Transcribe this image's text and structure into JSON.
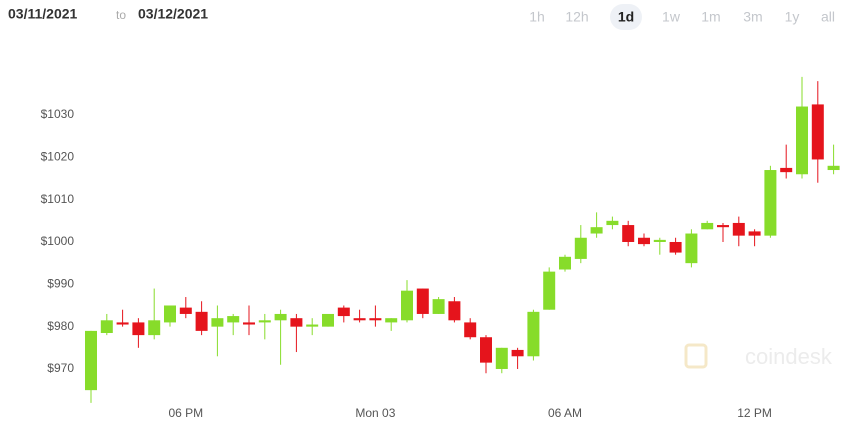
{
  "chart_data": {
    "type": "candlestick",
    "date_from": "03/11/2021",
    "date_separator": "to",
    "date_to": "03/12/2021",
    "ranges": [
      "1h",
      "12h",
      "1d",
      "1w",
      "1m",
      "3m",
      "1y",
      "all"
    ],
    "selected_range": "1d",
    "watermark": "coindesk",
    "categories": [
      null,
      null,
      null,
      null,
      null,
      null,
      "06 PM",
      null,
      null,
      null,
      null,
      null,
      null,
      null,
      null,
      null,
      null,
      null,
      "Mon 03",
      null,
      null,
      null,
      null,
      null,
      null,
      null,
      null,
      null,
      null,
      null,
      "06 AM",
      null,
      null,
      null,
      null,
      null,
      null,
      null,
      null,
      null,
      null,
      null,
      "12 PM",
      null,
      null,
      null,
      null,
      null
    ],
    "open": [
      965,
      978.5,
      981,
      981,
      978,
      981,
      984.5,
      983.5,
      980,
      981,
      981,
      981,
      981.5,
      982,
      980,
      980,
      984.5,
      982,
      982,
      981,
      981.5,
      989,
      983,
      986,
      981,
      977.5,
      970,
      974.5,
      973,
      984,
      993.5,
      996,
      1002,
      1004,
      1004,
      1001,
      1000,
      1000,
      995,
      1003,
      1004,
      1004.5,
      1002.5,
      1001.5,
      1017.5,
      1016,
      1032.5,
      1017
    ],
    "high": [
      979,
      983,
      984,
      982,
      989,
      985,
      987,
      986,
      985,
      983,
      985,
      983,
      984,
      983,
      982,
      983,
      985,
      984,
      985,
      982,
      991,
      989,
      987,
      987,
      982,
      978,
      975,
      975,
      984,
      994,
      997,
      1004,
      1007,
      1006,
      1005,
      1002,
      1001,
      1001,
      1003,
      1005,
      1004.5,
      1006,
      1003,
      1018,
      1023,
      1039,
      1038,
      1023
    ],
    "low": [
      962,
      978,
      980,
      975,
      977,
      980,
      982,
      978,
      973,
      978,
      978,
      977,
      971,
      974,
      978,
      980,
      981,
      981,
      980,
      979,
      981,
      982,
      983,
      981,
      977,
      969,
      969,
      970,
      972,
      984,
      993,
      995,
      1001,
      1003,
      999,
      999,
      997,
      997,
      994,
      1003,
      1000,
      999,
      999,
      1001,
      1015,
      1015,
      1014,
      1016
    ],
    "close": [
      979,
      981.5,
      980.5,
      978,
      981.5,
      985,
      983,
      979,
      982,
      982.5,
      980.5,
      981.5,
      983,
      980,
      980.5,
      983,
      982.5,
      981.5,
      981.5,
      982,
      988.5,
      983,
      986.5,
      981.5,
      977.5,
      971.5,
      975,
      973,
      983.5,
      993,
      996.5,
      1001,
      1003.5,
      1005,
      1000,
      999.5,
      1000.5,
      997.5,
      1002,
      1004.5,
      1003.5,
      1001.5,
      1001.5,
      1017,
      1016.5,
      1032,
      1019.5,
      1018
    ],
    "up_color": "#87dc2a",
    "down_color": "#e5141c",
    "ylim": [
      961,
      1048
    ],
    "yticks": [
      {
        "value": 970,
        "label": "$970"
      },
      {
        "value": 980,
        "label": "$980"
      },
      {
        "value": 990,
        "label": "$990"
      },
      {
        "value": 1000,
        "label": "$1000"
      },
      {
        "value": 1010,
        "label": "$1010"
      },
      {
        "value": 1020,
        "label": "$1020"
      },
      {
        "value": 1030,
        "label": "$1030"
      }
    ]
  }
}
